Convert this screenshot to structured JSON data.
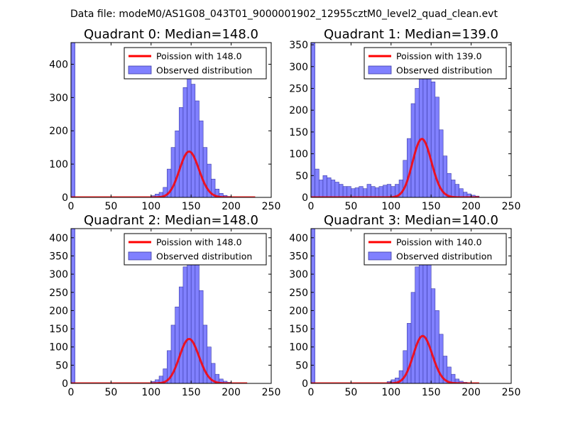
{
  "suptitle": "Data file: modeM0/AS1G08_043T01_9000001902_12955cztM0_level2_quad_clean.evt",
  "colors": {
    "bar_fill": "#8080ff",
    "bar_edge": "#3a3aa6",
    "curve": "#ff0000",
    "axes": "#000000"
  },
  "chart_data": [
    {
      "type": "bar",
      "title": "Quadrant 0: Median=148.0",
      "xlim": [
        0,
        250
      ],
      "ylim": [
        0,
        465
      ],
      "xticks": [
        0,
        50,
        100,
        150,
        200,
        250
      ],
      "yticks": [
        0,
        100,
        200,
        300,
        400
      ],
      "legend": {
        "location": "upper-right",
        "entries": [
          "Poission with 148.0",
          "Observed distribution"
        ]
      },
      "bin_width": 5,
      "bins": [
        [
          0,
          470
        ],
        [
          100,
          5
        ],
        [
          105,
          10
        ],
        [
          110,
          15
        ],
        [
          115,
          30
        ],
        [
          120,
          85
        ],
        [
          125,
          150
        ],
        [
          130,
          200
        ],
        [
          135,
          270
        ],
        [
          140,
          330
        ],
        [
          145,
          360
        ],
        [
          150,
          340
        ],
        [
          155,
          290
        ],
        [
          160,
          230
        ],
        [
          165,
          150
        ],
        [
          170,
          100
        ],
        [
          175,
          55
        ],
        [
          180,
          25
        ],
        [
          185,
          12
        ],
        [
          190,
          6
        ],
        [
          195,
          3
        ]
      ],
      "poisson_mean": 148.0,
      "poisson_norm": 4200,
      "curve_xrange": [
        0,
        230
      ]
    },
    {
      "type": "bar",
      "title": "Quadrant 1: Median=139.0",
      "xlim": [
        0,
        250
      ],
      "ylim": [
        0,
        355
      ],
      "xticks": [
        0,
        50,
        100,
        150,
        200,
        250
      ],
      "yticks": [
        0,
        50,
        100,
        150,
        200,
        250,
        300,
        350
      ],
      "legend": {
        "location": "upper-right",
        "entries": [
          "Poission with 139.0",
          "Observed distribution"
        ]
      },
      "bin_width": 5,
      "bins": [
        [
          0,
          355
        ],
        [
          5,
          65
        ],
        [
          10,
          40
        ],
        [
          15,
          50
        ],
        [
          20,
          45
        ],
        [
          25,
          40
        ],
        [
          30,
          35
        ],
        [
          35,
          30
        ],
        [
          40,
          25
        ],
        [
          45,
          25
        ],
        [
          50,
          20
        ],
        [
          55,
          22
        ],
        [
          60,
          25
        ],
        [
          65,
          20
        ],
        [
          70,
          30
        ],
        [
          75,
          25
        ],
        [
          80,
          22
        ],
        [
          85,
          25
        ],
        [
          90,
          28
        ],
        [
          95,
          30
        ],
        [
          100,
          25
        ],
        [
          105,
          30
        ],
        [
          110,
          40
        ],
        [
          115,
          85
        ],
        [
          120,
          135
        ],
        [
          125,
          215
        ],
        [
          130,
          250
        ],
        [
          135,
          310
        ],
        [
          140,
          300
        ],
        [
          145,
          330
        ],
        [
          150,
          265
        ],
        [
          155,
          230
        ],
        [
          160,
          155
        ],
        [
          165,
          95
        ],
        [
          170,
          55
        ],
        [
          175,
          40
        ],
        [
          180,
          30
        ],
        [
          185,
          20
        ],
        [
          190,
          12
        ],
        [
          195,
          8
        ],
        [
          200,
          5
        ],
        [
          205,
          3
        ]
      ],
      "poisson_mean": 139.0,
      "poisson_norm": 3960,
      "curve_xrange": [
        0,
        210
      ]
    },
    {
      "type": "bar",
      "title": "Quadrant 2: Median=148.0",
      "xlim": [
        0,
        250
      ],
      "ylim": [
        0,
        425
      ],
      "xticks": [
        0,
        50,
        100,
        150,
        200,
        250
      ],
      "yticks": [
        0,
        50,
        100,
        150,
        200,
        250,
        300,
        350,
        400
      ],
      "legend": {
        "location": "upper-right",
        "entries": [
          "Poission with 148.0",
          "Observed distribution"
        ]
      },
      "bin_width": 5,
      "bins": [
        [
          0,
          430
        ],
        [
          100,
          5
        ],
        [
          105,
          10
        ],
        [
          110,
          20
        ],
        [
          115,
          40
        ],
        [
          120,
          90
        ],
        [
          125,
          160
        ],
        [
          130,
          210
        ],
        [
          135,
          265
        ],
        [
          140,
          320
        ],
        [
          145,
          410
        ],
        [
          150,
          400
        ],
        [
          155,
          325
        ],
        [
          160,
          255
        ],
        [
          165,
          160
        ],
        [
          170,
          100
        ],
        [
          175,
          55
        ],
        [
          180,
          25
        ],
        [
          185,
          12
        ],
        [
          190,
          6
        ],
        [
          195,
          3
        ]
      ],
      "poisson_mean": 148.0,
      "poisson_norm": 3720,
      "curve_xrange": [
        0,
        220
      ]
    },
    {
      "type": "bar",
      "title": "Quadrant 3: Median=140.0",
      "xlim": [
        0,
        250
      ],
      "ylim": [
        0,
        425
      ],
      "xticks": [
        0,
        50,
        100,
        150,
        200,
        250
      ],
      "yticks": [
        0,
        50,
        100,
        150,
        200,
        250,
        300,
        350,
        400
      ],
      "legend": {
        "location": "upper-right",
        "entries": [
          "Poission with 140.0",
          "Observed distribution"
        ]
      },
      "bin_width": 5,
      "bins": [
        [
          0,
          430
        ],
        [
          95,
          5
        ],
        [
          100,
          10
        ],
        [
          105,
          15
        ],
        [
          110,
          35
        ],
        [
          115,
          90
        ],
        [
          120,
          165
        ],
        [
          125,
          250
        ],
        [
          130,
          320
        ],
        [
          135,
          345
        ],
        [
          140,
          400
        ],
        [
          145,
          330
        ],
        [
          150,
          260
        ],
        [
          155,
          200
        ],
        [
          160,
          135
        ],
        [
          165,
          75
        ],
        [
          170,
          45
        ],
        [
          175,
          25
        ],
        [
          180,
          12
        ],
        [
          185,
          6
        ],
        [
          190,
          3
        ]
      ],
      "poisson_mean": 140.0,
      "poisson_norm": 3860,
      "curve_xrange": [
        0,
        210
      ]
    }
  ]
}
